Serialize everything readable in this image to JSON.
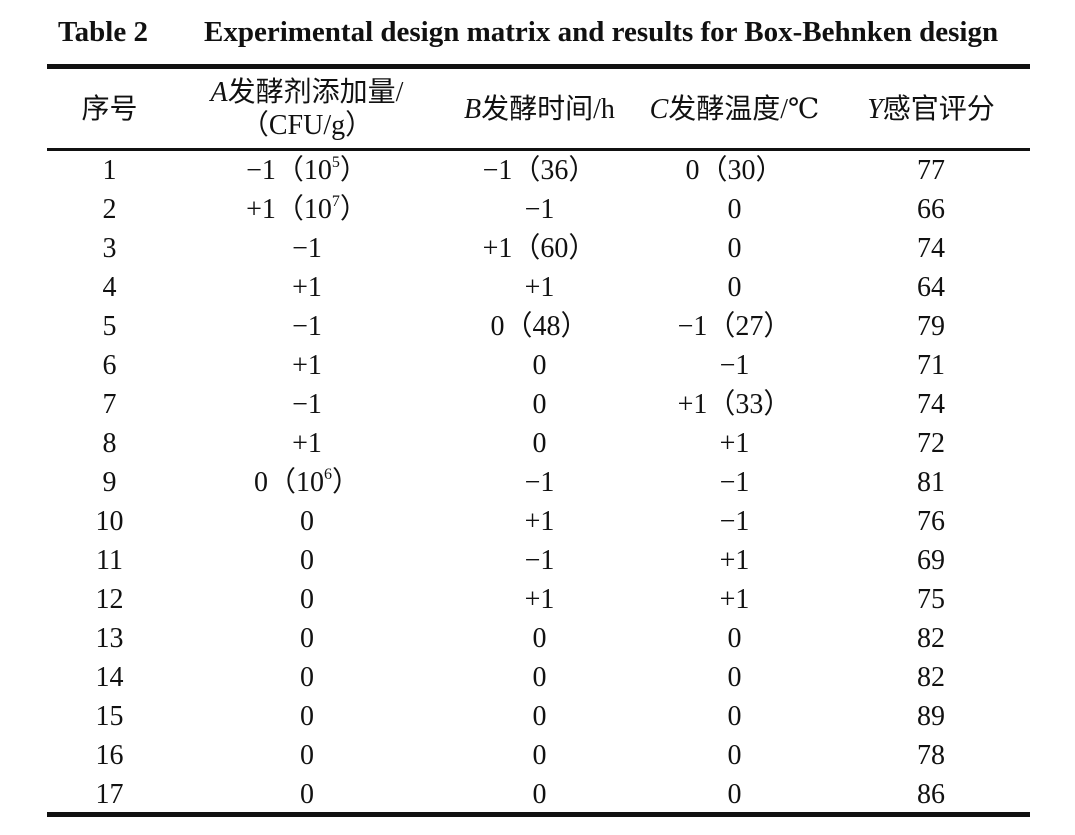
{
  "caption": {
    "label": "Table 2",
    "title": "Experimental design matrix and results for Box-Behnken design"
  },
  "headers": {
    "col0": "序号",
    "col1_var": "A",
    "col1_line1": "发酵剂添加量/",
    "col1_line2": "（CFU/g）",
    "col2_var": "B",
    "col2_label": "发酵时间/h",
    "col3_var": "C",
    "col3_label": "发酵温度/℃",
    "col4_var": "Y",
    "col4_label": "感官评分"
  },
  "rows": [
    {
      "no": "1",
      "a": "−1（10",
      "a_sup": "5",
      "a_tail": "）",
      "b": "−1（36）",
      "c": "0（30）",
      "y": "77"
    },
    {
      "no": "2",
      "a": "+1（10",
      "a_sup": "7",
      "a_tail": "）",
      "b": "−1",
      "c": "0",
      "y": "66"
    },
    {
      "no": "3",
      "a": "−1",
      "a_sup": "",
      "a_tail": "",
      "b": "+1（60）",
      "c": "0",
      "y": "74"
    },
    {
      "no": "4",
      "a": "+1",
      "a_sup": "",
      "a_tail": "",
      "b": "+1",
      "c": "0",
      "y": "64"
    },
    {
      "no": "5",
      "a": "−1",
      "a_sup": "",
      "a_tail": "",
      "b": "0（48）",
      "c": "−1（27）",
      "y": "79"
    },
    {
      "no": "6",
      "a": "+1",
      "a_sup": "",
      "a_tail": "",
      "b": "0",
      "c": "−1",
      "y": "71"
    },
    {
      "no": "7",
      "a": "−1",
      "a_sup": "",
      "a_tail": "",
      "b": "0",
      "c": "+1（33）",
      "y": "74"
    },
    {
      "no": "8",
      "a": "+1",
      "a_sup": "",
      "a_tail": "",
      "b": "0",
      "c": "+1",
      "y": "72"
    },
    {
      "no": "9",
      "a": "0（10",
      "a_sup": "6",
      "a_tail": "）",
      "b": "−1",
      "c": "−1",
      "y": "81"
    },
    {
      "no": "10",
      "a": "0",
      "a_sup": "",
      "a_tail": "",
      "b": "+1",
      "c": "−1",
      "y": "76"
    },
    {
      "no": "11",
      "a": "0",
      "a_sup": "",
      "a_tail": "",
      "b": "−1",
      "c": "+1",
      "y": "69"
    },
    {
      "no": "12",
      "a": "0",
      "a_sup": "",
      "a_tail": "",
      "b": "+1",
      "c": "+1",
      "y": "75"
    },
    {
      "no": "13",
      "a": "0",
      "a_sup": "",
      "a_tail": "",
      "b": "0",
      "c": "0",
      "y": "82"
    },
    {
      "no": "14",
      "a": "0",
      "a_sup": "",
      "a_tail": "",
      "b": "0",
      "c": "0",
      "y": "82"
    },
    {
      "no": "15",
      "a": "0",
      "a_sup": "",
      "a_tail": "",
      "b": "0",
      "c": "0",
      "y": "89"
    },
    {
      "no": "16",
      "a": "0",
      "a_sup": "",
      "a_tail": "",
      "b": "0",
      "c": "0",
      "y": "78"
    },
    {
      "no": "17",
      "a": "0",
      "a_sup": "",
      "a_tail": "",
      "b": "0",
      "c": "0",
      "y": "86"
    }
  ]
}
